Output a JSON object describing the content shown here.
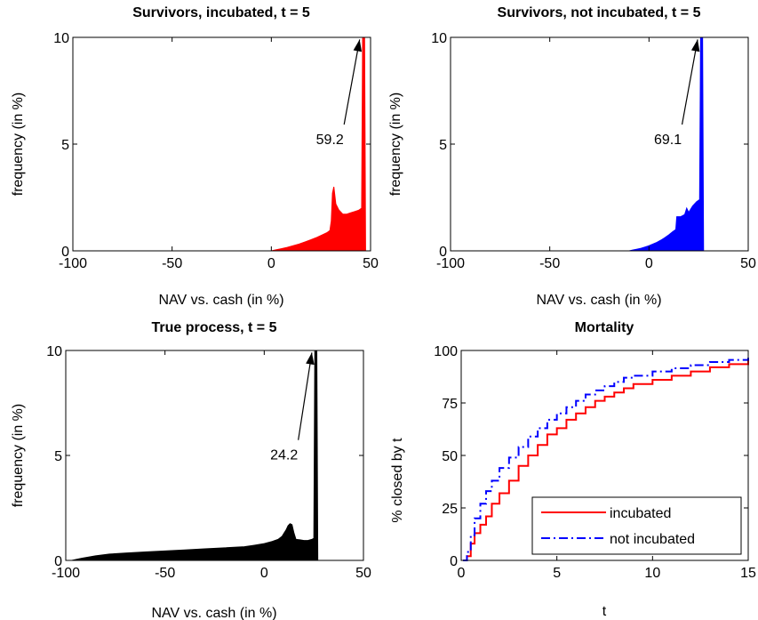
{
  "chart_data": [
    {
      "type": "area",
      "title": "Survivors, incubated, t = 5",
      "xlabel": "NAV vs. cash (in %)",
      "ylabel": "frequency (in %)",
      "xlim": [
        -100,
        50
      ],
      "ylim": [
        0,
        10
      ],
      "xticks": [
        "-100",
        "-50",
        "0",
        "50"
      ],
      "yticks": [
        "0",
        "5",
        "10"
      ],
      "color": "#ff0000",
      "series": [
        {
          "x": [
            0,
            2,
            5,
            8,
            11,
            14,
            17,
            20,
            23,
            26,
            28,
            29.5,
            30.2,
            30.8,
            31.5,
            32.5,
            34,
            36,
            38,
            40,
            42,
            44,
            45.5,
            46,
            47,
            47.5
          ],
          "y": [
            0,
            0.04,
            0.1,
            0.16,
            0.24,
            0.32,
            0.42,
            0.52,
            0.63,
            0.76,
            0.85,
            0.95,
            1.4,
            2.7,
            3.0,
            2.2,
            1.92,
            1.72,
            1.72,
            1.78,
            1.84,
            1.9,
            2.0,
            10,
            10,
            0
          ]
        }
      ],
      "annotation": {
        "text": "59.2",
        "x_text": 29.5,
        "y_text": 5.0,
        "x_arrow": 44.5,
        "y_arrow": 9.9
      }
    },
    {
      "type": "area",
      "title": "Survivors, not incubated, t = 5",
      "xlabel": "NAV vs. cash (in %)",
      "ylabel": "frequency (in %)",
      "xlim": [
        -100,
        50
      ],
      "ylim": [
        0,
        10
      ],
      "xticks": [
        "-100",
        "-50",
        "0",
        "50"
      ],
      "yticks": [
        "0",
        "5",
        "10"
      ],
      "color": "#0000ff",
      "series": [
        {
          "x": [
            -10,
            -8,
            -6,
            -4,
            -2,
            0,
            2,
            4,
            6,
            8,
            10,
            12,
            13.5,
            14,
            16,
            18,
            19,
            20,
            22,
            24,
            25.5,
            26,
            27,
            27.5
          ],
          "y": [
            0,
            0.04,
            0.08,
            0.12,
            0.18,
            0.24,
            0.32,
            0.4,
            0.5,
            0.62,
            0.75,
            0.9,
            1.0,
            1.6,
            1.6,
            1.7,
            2.0,
            1.8,
            2.1,
            2.3,
            2.4,
            10,
            10,
            0
          ]
        }
      ],
      "annotation": {
        "text": "69.1",
        "x_text": 9.5,
        "y_text": 5.0,
        "x_arrow": 24.5,
        "y_arrow": 9.9
      }
    },
    {
      "type": "area",
      "title": "True process, t = 5",
      "xlabel": "NAV vs. cash (in %)",
      "ylabel": "frequency (in %)",
      "xlim": [
        -100,
        50
      ],
      "ylim": [
        0,
        10
      ],
      "xticks": [
        "-100",
        "-50",
        "0",
        "50"
      ],
      "yticks": [
        "0",
        "5",
        "10"
      ],
      "color": "#000000",
      "series": [
        {
          "x": [
            -97,
            -92,
            -85,
            -78,
            -70,
            -60,
            -50,
            -40,
            -30,
            -20,
            -10,
            -5,
            0,
            4,
            7,
            9,
            10,
            11,
            12,
            13,
            14,
            15,
            16,
            18,
            20,
            22,
            24,
            25,
            25.5,
            26.5,
            27
          ],
          "y": [
            0,
            0.1,
            0.22,
            0.3,
            0.35,
            0.4,
            0.45,
            0.5,
            0.55,
            0.6,
            0.65,
            0.72,
            0.8,
            0.9,
            1.0,
            1.15,
            1.3,
            1.45,
            1.65,
            1.75,
            1.7,
            1.3,
            1.0,
            0.98,
            0.95,
            0.95,
            1.0,
            1.05,
            10,
            10,
            0
          ]
        }
      ],
      "annotation": {
        "text": "24.2",
        "x_text": 10.0,
        "y_text": 4.8,
        "x_arrow": 24.0,
        "y_arrow": 9.9
      }
    },
    {
      "type": "line",
      "title": "Mortality",
      "xlabel": "t",
      "ylabel": "% closed by t",
      "xlim": [
        0,
        15
      ],
      "ylim": [
        0,
        100
      ],
      "xticks": [
        "0",
        "5",
        "10",
        "15"
      ],
      "yticks": [
        "0",
        "25",
        "50",
        "75",
        "100"
      ],
      "legend_position": "bottom-right",
      "series": [
        {
          "name": "incubated",
          "color": "#ff0000",
          "style": "solid",
          "x": [
            0.1,
            0.3,
            0.5,
            0.7,
            1.0,
            1.3,
            1.6,
            2.0,
            2.5,
            3.0,
            3.5,
            4.0,
            4.5,
            5.0,
            5.5,
            6.0,
            6.5,
            7.0,
            7.5,
            8.0,
            8.5,
            9.0,
            10.0,
            11.0,
            12.0,
            13.0,
            14.0,
            15.0
          ],
          "y": [
            0,
            2,
            8,
            13,
            17,
            21,
            27,
            32,
            38,
            45,
            50,
            55,
            60,
            63,
            67,
            70,
            73,
            76,
            78,
            80,
            82,
            84,
            86,
            88,
            90,
            92,
            93.5,
            95.5
          ]
        },
        {
          "name": "not incubated",
          "color": "#0000ff",
          "style": "dash-dot",
          "x": [
            0.1,
            0.3,
            0.5,
            0.7,
            1.0,
            1.3,
            1.6,
            2.0,
            2.5,
            3.0,
            3.5,
            4.0,
            4.5,
            5.0,
            5.5,
            6.0,
            6.5,
            7.0,
            7.5,
            8.0,
            8.5,
            9.0,
            10.0,
            11.0,
            12.0,
            13.0,
            14.0,
            15.0
          ],
          "y": [
            0,
            4,
            12,
            20,
            27,
            33,
            38,
            44,
            49,
            54,
            59,
            63,
            67,
            70,
            73,
            76,
            79,
            81,
            83,
            85,
            87,
            88,
            90,
            91.5,
            93,
            94.5,
            95.5,
            96.5
          ]
        }
      ]
    }
  ]
}
